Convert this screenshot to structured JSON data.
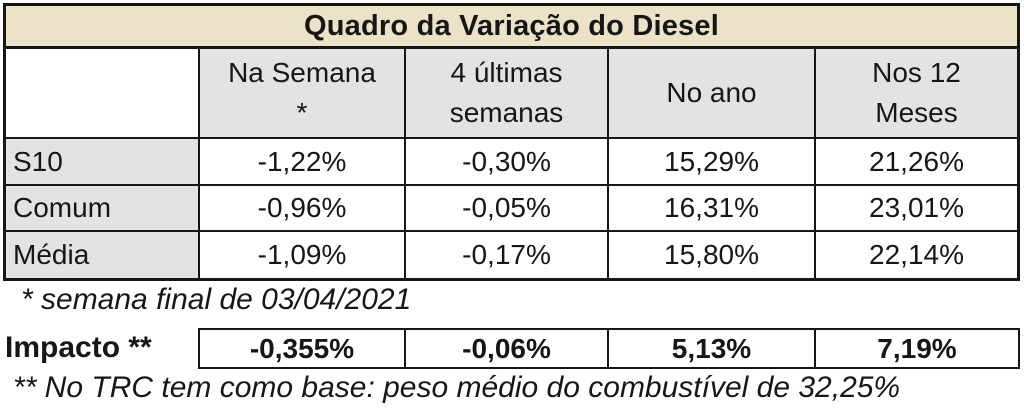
{
  "chart_data": {
    "type": "table",
    "title": "Quadro da Variação do Diesel",
    "columns": [
      "",
      "Na Semana *",
      "4 últimas semanas",
      "No ano",
      "Nos 12 Meses"
    ],
    "rows": [
      [
        "S10",
        "-1,22%",
        "-0,30%",
        "15,29%",
        "21,26%"
      ],
      [
        "Comum",
        "-0,96%",
        "-0,05%",
        "16,31%",
        "23,01%"
      ],
      [
        "Média",
        "-1,09%",
        "-0,17%",
        "15,80%",
        "22,14%"
      ],
      [
        "Impacto **",
        "-0,355%",
        "-0,06%",
        "5,13%",
        "7,19%"
      ]
    ],
    "footnotes": [
      "* semana final de 03/04/2021",
      "** No TRC tem como base: peso médio do combustível de 32,25%"
    ]
  },
  "table": {
    "title": "Quadro da Variação do Diesel",
    "headers": [
      "Na Semana\n*",
      "4 últimas\nsemanas",
      "No ano",
      "Nos 12\nMeses"
    ],
    "rows": [
      {
        "label": "S10",
        "values": [
          "-1,22%",
          "-0,30%",
          "15,29%",
          "21,26%"
        ]
      },
      {
        "label": "Comum",
        "values": [
          "-0,96%",
          "-0,05%",
          "16,31%",
          "23,01%"
        ]
      },
      {
        "label": "Média",
        "values": [
          "-1,09%",
          "-0,17%",
          "15,80%",
          "22,14%"
        ]
      }
    ]
  },
  "footnotes": {
    "week": "* semana final de 03/04/2021",
    "trc": "** No TRC tem como base: peso médio do combustível de 32,25%"
  },
  "impact": {
    "label": "Impacto **",
    "values": [
      "-0,355%",
      "-0,06%",
      "5,13%",
      "7,19%"
    ]
  },
  "colors": {
    "title_bg": "#ebe2c8",
    "header_bg": "#e3e3e3",
    "border": "#161616"
  }
}
